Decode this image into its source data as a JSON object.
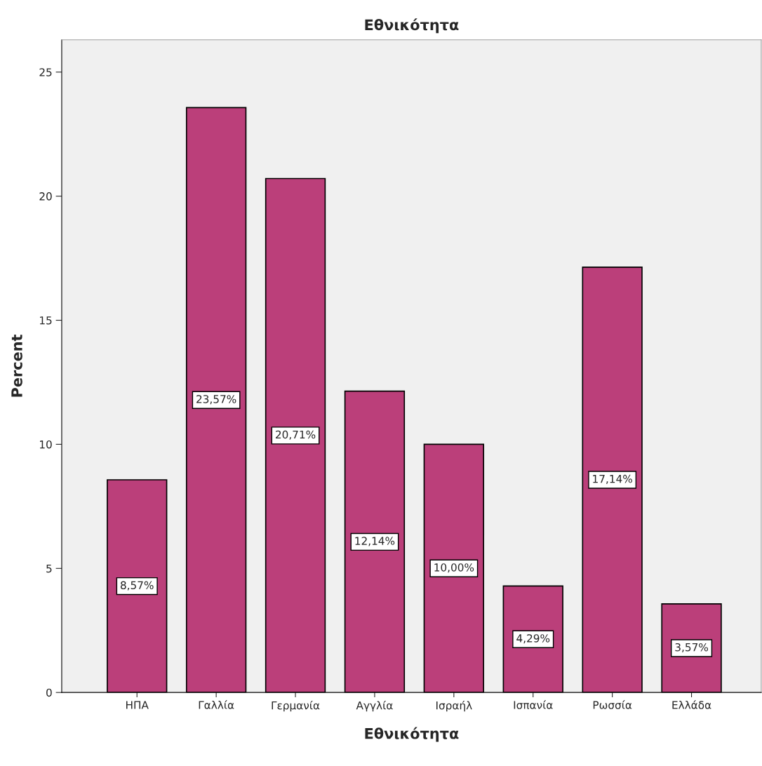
{
  "chart_data": {
    "type": "bar",
    "title": "Εθνικότητα",
    "xlabel": "Εθνικότητα",
    "ylabel": "Percent",
    "categories": [
      "ΗΠΑ",
      "Γαλλία",
      "Γερμανία",
      "Αγγλία",
      "Ισραήλ",
      "Ισπανία",
      "Ρωσσία",
      "Ελλάδα"
    ],
    "values": [
      8.57,
      23.57,
      20.71,
      12.14,
      10.0,
      4.29,
      17.14,
      3.57
    ],
    "value_labels": [
      "8,57%",
      "23,57%",
      "20,71%",
      "12,14%",
      "10,00%",
      "4,29%",
      "17,14%",
      "3,57%"
    ],
    "color": "#bb3f7a",
    "ylim": [
      0,
      26.3
    ],
    "yticks": [
      0,
      5,
      10,
      15,
      20,
      25
    ],
    "grid": false
  }
}
